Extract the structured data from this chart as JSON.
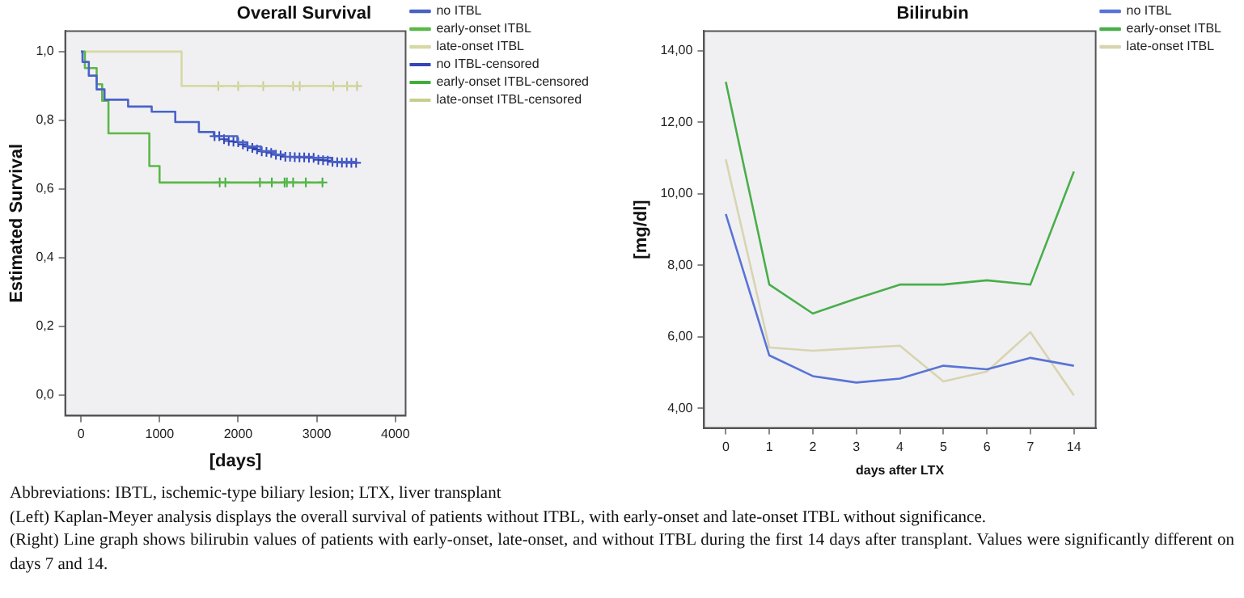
{
  "chart_data": [
    {
      "type": "step",
      "title": "Overall Survival",
      "xlabel": "[days]",
      "ylabel": "Estimated Survival",
      "xlim": [
        -200,
        4130
      ],
      "ylim": [
        -0.06,
        1.06
      ],
      "xticks": [
        0,
        1000,
        2000,
        3000,
        4000
      ],
      "yticks": [
        {
          "value": 0,
          "label": "0,0"
        },
        {
          "value": 0.2,
          "label": "0,2"
        },
        {
          "value": 0.4,
          "label": "0,4"
        },
        {
          "value": 0.6,
          "label": "0,6"
        },
        {
          "value": 0.8,
          "label": "0,8"
        },
        {
          "value": 1,
          "label": "1,0"
        }
      ],
      "legend": "right",
      "marker": "none",
      "series": [
        {
          "name": "no ITBL",
          "color": "#4a62c8",
          "x": [
            0,
            20,
            100,
            200,
            300,
            600,
            900,
            1200,
            1500,
            1690,
            1990,
            2110,
            2290,
            2470,
            2590,
            2950,
            3190,
            3500
          ],
          "values": [
            1,
            0.97,
            0.93,
            0.89,
            0.86,
            0.84,
            0.825,
            0.795,
            0.766,
            0.754,
            0.736,
            0.724,
            0.71,
            0.7,
            0.694,
            0.691,
            0.679,
            0.676
          ]
        },
        {
          "name": "early-onset ITBL",
          "color": "#5cb847",
          "x": [
            0,
            50,
            200,
            270,
            350,
            870,
            1000,
            3080
          ],
          "values": [
            1,
            0.952,
            0.905,
            0.857,
            0.762,
            0.667,
            0.619,
            0.619
          ]
        },
        {
          "name": "late-onset ITBL",
          "color": "#d6d9a4",
          "x": [
            60,
            1280,
            3510
          ],
          "values": [
            1,
            0.9,
            0.9
          ]
        },
        {
          "name": "no ITBL-censored",
          "type": "scatter",
          "marker": "cross",
          "color": "#3346b8",
          "x": [
            1700,
            1760,
            1820,
            1880,
            1940,
            2000,
            2060,
            2120,
            2180,
            2240,
            2300,
            2360,
            2420,
            2480,
            2540,
            2600,
            2660,
            2720,
            2780,
            2840,
            2900,
            2960,
            3020,
            3080,
            3140,
            3200,
            3260,
            3320,
            3380,
            3440,
            3500
          ],
          "values": [
            0.754,
            0.754,
            0.745,
            0.74,
            0.738,
            0.736,
            0.73,
            0.724,
            0.72,
            0.715,
            0.71,
            0.708,
            0.705,
            0.7,
            0.698,
            0.694,
            0.694,
            0.693,
            0.692,
            0.692,
            0.691,
            0.691,
            0.685,
            0.684,
            0.683,
            0.679,
            0.678,
            0.677,
            0.677,
            0.676,
            0.676
          ]
        },
        {
          "name": "early-onset ITBL-censored",
          "type": "scatter",
          "marker": "cross",
          "color": "#3fae3a",
          "x": [
            1765,
            1837,
            2277,
            2428,
            2590,
            2620,
            2699,
            2861,
            3072
          ],
          "values": [
            0.619,
            0.619,
            0.619,
            0.619,
            0.619,
            0.619,
            0.619,
            0.619,
            0.619
          ]
        },
        {
          "name": "late-onset ITBL-censored",
          "type": "scatter",
          "marker": "cross",
          "color": "#c9cd8c",
          "x": [
            1747,
            2000,
            2319,
            2699,
            2783,
            3211,
            3386,
            3512
          ],
          "values": [
            0.9,
            0.9,
            0.9,
            0.9,
            0.9,
            0.9,
            0.9,
            0.9
          ]
        }
      ],
      "annotations": [
        "Abbreviations: IBTL, ischemic-type biliary lesion; LTX, liver transplant",
        "(Left) Kaplan-Meyer analysis displays the overall survival of patients without ITBL, with early-onset and late-onset ITBL without significance.",
        "(Right) Line graph shows bilirubin values of patients with early-onset, late-onset, and without ITBL during the first 14 days after transplant. Values were significantly different on days 7 and 14."
      ]
    },
    {
      "type": "line",
      "title": "Bilirubin",
      "xlabel": "days after LTX",
      "ylabel": "[mg/dl]",
      "categories": [
        "0",
        "1",
        "2",
        "3",
        "4",
        "5",
        "6",
        "7",
        "14"
      ],
      "ylim": [
        3.45,
        14.55
      ],
      "yticks": [
        {
          "value": 4,
          "label": "4,00"
        },
        {
          "value": 6,
          "label": "6,00"
        },
        {
          "value": 8,
          "label": "8,00"
        },
        {
          "value": 10,
          "label": "10,00"
        },
        {
          "value": 12,
          "label": "12,00"
        },
        {
          "value": 14,
          "label": "14,00"
        }
      ],
      "legend": "right",
      "marker": "none",
      "series": [
        {
          "name": "no ITBL",
          "color": "#5a74d6",
          "values": [
            9.43,
            5.48,
            4.9,
            4.72,
            4.83,
            5.19,
            5.09,
            5.41,
            5.19
          ]
        },
        {
          "name": "early-onset ITBL",
          "color": "#4aae4a",
          "values": [
            13.13,
            7.46,
            6.65,
            7.07,
            7.46,
            7.46,
            7.58,
            7.46,
            10.62
          ]
        },
        {
          "name": "late-onset ITBL",
          "color": "#d8d4b0",
          "values": [
            10.96,
            5.7,
            5.61,
            5.68,
            5.75,
            4.75,
            5.03,
            6.13,
            4.36
          ]
        }
      ]
    }
  ]
}
